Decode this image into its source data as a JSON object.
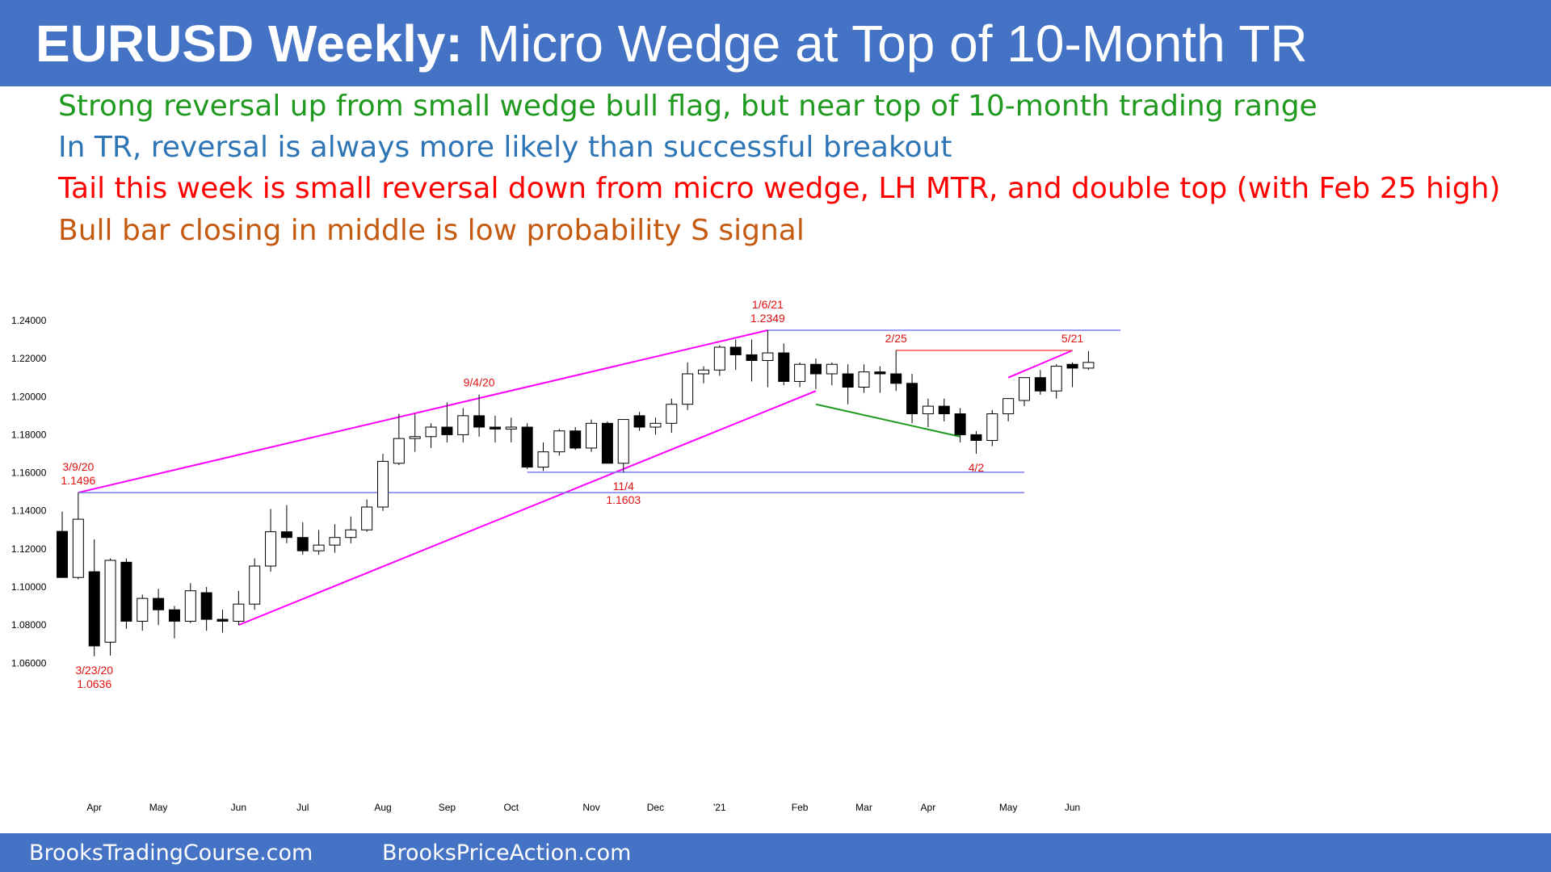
{
  "header": {
    "title_bold": "EURUSD Weekly:",
    "title_rest": " Micro Wedge at Top of 10-Month TR"
  },
  "notes": [
    {
      "text": "Strong reversal up from small wedge bull flag, but near top of 10-month trading range",
      "color": "#1f9a1f"
    },
    {
      "text": "In TR, reversal is always more likely than successful breakout",
      "color": "#2e75b6"
    },
    {
      "text": "Tail this week is small reversal down from micro wedge, LH MTR, and double top (with Feb 25 high)",
      "color": "#ff0000"
    },
    {
      "text": "Bull bar closing in middle is low probability S signal",
      "color": "#c55a11"
    }
  ],
  "footer": {
    "left": "BrooksTradingCourse.com",
    "right": "BrooksPriceAction.com"
  },
  "chart_data": {
    "type": "candlestick",
    "y_ticks": [
      "1.24000",
      "1.22000",
      "1.20000",
      "1.18000",
      "1.16000",
      "1.14000",
      "1.12000",
      "1.10000",
      "1.08000",
      "1.06000"
    ],
    "ylim": [
      1.054,
      1.246
    ],
    "x_ticks": [
      {
        "label": "Apr",
        "index": 2
      },
      {
        "label": "May",
        "index": 6
      },
      {
        "label": "Jun",
        "index": 11
      },
      {
        "label": "Jul",
        "index": 15
      },
      {
        "label": "Aug",
        "index": 20
      },
      {
        "label": "Sep",
        "index": 24
      },
      {
        "label": "Oct",
        "index": 28
      },
      {
        "label": "Nov",
        "index": 33
      },
      {
        "label": "Dec",
        "index": 37
      },
      {
        "label": "'21",
        "index": 41
      },
      {
        "label": "Feb",
        "index": 46
      },
      {
        "label": "Mar",
        "index": 50
      },
      {
        "label": "Apr",
        "index": 54
      },
      {
        "label": "May",
        "index": 59
      },
      {
        "label": "Jun",
        "index": 63
      }
    ],
    "candles": [
      [
        1.1292,
        1.1396,
        1.1048,
        1.105
      ],
      [
        1.105,
        1.1496,
        1.104,
        1.1356
      ],
      [
        1.108,
        1.125,
        1.0636,
        1.069
      ],
      [
        1.071,
        1.115,
        1.064,
        1.114
      ],
      [
        1.113,
        1.115,
        1.078,
        1.082
      ],
      [
        1.082,
        1.096,
        1.077,
        1.094
      ],
      [
        1.094,
        1.099,
        1.08,
        1.088
      ],
      [
        1.088,
        1.09,
        1.073,
        1.082
      ],
      [
        1.082,
        1.102,
        1.081,
        1.098
      ],
      [
        1.097,
        1.1,
        1.077,
        1.083
      ],
      [
        1.083,
        1.088,
        1.076,
        1.082
      ],
      [
        1.082,
        1.098,
        1.08,
        1.091
      ],
      [
        1.091,
        1.115,
        1.088,
        1.111
      ],
      [
        1.111,
        1.141,
        1.108,
        1.129
      ],
      [
        1.129,
        1.143,
        1.123,
        1.126
      ],
      [
        1.126,
        1.134,
        1.117,
        1.119
      ],
      [
        1.119,
        1.13,
        1.117,
        1.122
      ],
      [
        1.122,
        1.133,
        1.118,
        1.126
      ],
      [
        1.126,
        1.137,
        1.123,
        1.13
      ],
      [
        1.13,
        1.146,
        1.129,
        1.142
      ],
      [
        1.142,
        1.17,
        1.14,
        1.166
      ],
      [
        1.165,
        1.191,
        1.164,
        1.178
      ],
      [
        1.178,
        1.191,
        1.171,
        1.179
      ],
      [
        1.179,
        1.186,
        1.173,
        1.184
      ],
      [
        1.184,
        1.197,
        1.176,
        1.18
      ],
      [
        1.18,
        1.194,
        1.176,
        1.19
      ],
      [
        1.19,
        1.2011,
        1.179,
        1.184
      ],
      [
        1.184,
        1.19,
        1.176,
        1.183
      ],
      [
        1.183,
        1.189,
        1.176,
        1.184
      ],
      [
        1.184,
        1.186,
        1.162,
        1.163
      ],
      [
        1.163,
        1.176,
        1.161,
        1.171
      ],
      [
        1.171,
        1.183,
        1.169,
        1.182
      ],
      [
        1.182,
        1.184,
        1.172,
        1.173
      ],
      [
        1.173,
        1.188,
        1.171,
        1.186
      ],
      [
        1.186,
        1.187,
        1.165,
        1.165
      ],
      [
        1.165,
        1.188,
        1.1603,
        1.188
      ],
      [
        1.19,
        1.192,
        1.182,
        1.184
      ],
      [
        1.184,
        1.189,
        1.18,
        1.186
      ],
      [
        1.186,
        1.199,
        1.181,
        1.196
      ],
      [
        1.196,
        1.218,
        1.193,
        1.212
      ],
      [
        1.212,
        1.216,
        1.207,
        1.214
      ],
      [
        1.214,
        1.227,
        1.211,
        1.226
      ],
      [
        1.226,
        1.23,
        1.214,
        1.222
      ],
      [
        1.222,
        1.23,
        1.208,
        1.219
      ],
      [
        1.219,
        1.2349,
        1.205,
        1.223
      ],
      [
        1.223,
        1.228,
        1.206,
        1.208
      ],
      [
        1.208,
        1.218,
        1.205,
        1.217
      ],
      [
        1.217,
        1.22,
        1.204,
        1.212
      ],
      [
        1.212,
        1.218,
        1.206,
        1.217
      ],
      [
        1.212,
        1.217,
        1.196,
        1.205
      ],
      [
        1.205,
        1.217,
        1.202,
        1.213
      ],
      [
        1.213,
        1.216,
        1.202,
        1.212
      ],
      [
        1.212,
        1.2243,
        1.203,
        1.207
      ],
      [
        1.207,
        1.212,
        1.186,
        1.191
      ],
      [
        1.191,
        1.199,
        1.184,
        1.195
      ],
      [
        1.195,
        1.199,
        1.187,
        1.191
      ],
      [
        1.191,
        1.194,
        1.176,
        1.18
      ],
      [
        1.18,
        1.182,
        1.17,
        1.177
      ],
      [
        1.177,
        1.193,
        1.174,
        1.191
      ],
      [
        1.191,
        1.199,
        1.187,
        1.199
      ],
      [
        1.198,
        1.21,
        1.195,
        1.21
      ],
      [
        1.21,
        1.214,
        1.201,
        1.203
      ],
      [
        1.203,
        1.217,
        1.199,
        1.216
      ],
      [
        1.217,
        1.218,
        1.205,
        1.215
      ],
      [
        1.215,
        1.224,
        1.214,
        1.218
      ]
    ],
    "lines": [
      {
        "kind": "wedge-upper",
        "color": "#ff00ff",
        "from": [
          1,
          1.1496
        ],
        "to": [
          44,
          1.2349
        ]
      },
      {
        "kind": "wedge-lower",
        "color": "#ff00ff",
        "from": [
          11,
          1.08
        ],
        "to": [
          47,
          1.203
        ]
      },
      {
        "kind": "micro-wedge",
        "color": "#ff00ff",
        "from": [
          59,
          1.21
        ],
        "to": [
          63,
          1.2243
        ]
      },
      {
        "kind": "bull-flag",
        "color": "#1f9a1f",
        "from": [
          47,
          1.196
        ],
        "to": [
          56,
          1.179
        ]
      },
      {
        "kind": "high-2021",
        "color": "#7b7bf0",
        "from": [
          44,
          1.2349
        ],
        "to": [
          66,
          1.2349
        ]
      },
      {
        "kind": "feb25-high",
        "color": "#ff5050",
        "from": [
          52,
          1.2243
        ],
        "to": [
          63,
          1.2243
        ]
      },
      {
        "kind": "nov-low",
        "color": "#7b7bf0",
        "from": [
          29,
          1.1603
        ],
        "to": [
          60,
          1.1603
        ]
      },
      {
        "kind": "mar-2020-high",
        "color": "#7b7bf0",
        "from": [
          1,
          1.1496
        ],
        "to": [
          60,
          1.1496
        ]
      }
    ],
    "annotations": [
      {
        "index": 1,
        "anchor": 1.1496,
        "pos": "above",
        "lines": [
          "3/9/20",
          "1.1496"
        ]
      },
      {
        "index": 2,
        "anchor": 1.0636,
        "pos": "below",
        "lines": [
          "3/23/20",
          "1.0636"
        ]
      },
      {
        "index": 26,
        "anchor": 1.2011,
        "pos": "above",
        "lines": [
          "9/4/20"
        ]
      },
      {
        "index": 35,
        "anchor": 1.1603,
        "pos": "below",
        "lines": [
          "11/4",
          "1.1603"
        ]
      },
      {
        "index": 44,
        "anchor": 1.2349,
        "pos": "above",
        "lines": [
          "1/6/21",
          "1.2349"
        ]
      },
      {
        "index": 52,
        "anchor": 1.2243,
        "pos": "above",
        "lines": [
          "2/25"
        ]
      },
      {
        "index": 57,
        "anchor": 1.17,
        "pos": "below",
        "lines": [
          "4/2"
        ]
      },
      {
        "index": 63,
        "anchor": 1.2243,
        "pos": "above",
        "lines": [
          "5/21"
        ]
      }
    ]
  }
}
